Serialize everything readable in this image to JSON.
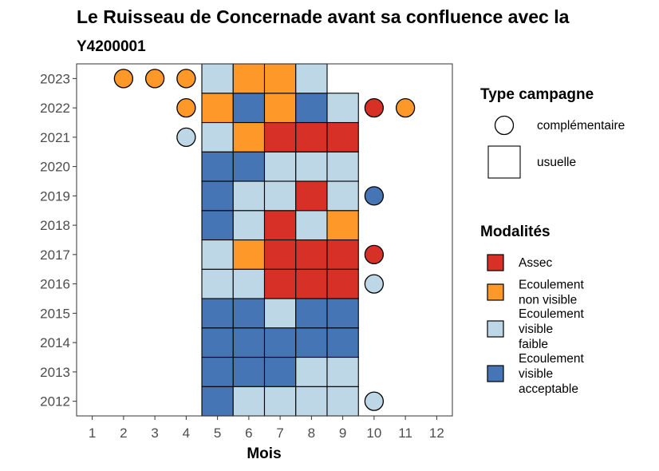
{
  "chart_data": {
    "type": "heatmap",
    "title": "Le Ruisseau de Concernade avant sa confluence avec la",
    "subtitle": "Y4200001",
    "xlabel": "Mois",
    "ylabel": "",
    "x_ticks": [
      "1",
      "2",
      "3",
      "4",
      "5",
      "6",
      "7",
      "8",
      "9",
      "10",
      "11",
      "12"
    ],
    "y_ticks": [
      "2012",
      "2013",
      "2014",
      "2015",
      "2016",
      "2017",
      "2018",
      "2019",
      "2020",
      "2021",
      "2022",
      "2023"
    ],
    "xlim": [
      0.5,
      12.5
    ],
    "ylim": [
      2011.5,
      2023.5
    ],
    "grid": false,
    "legend_placement": "right",
    "legend_type": {
      "title": "Type campagne",
      "entries": [
        {
          "key": "complementaire",
          "label": "complémentaire",
          "shape": "circle"
        },
        {
          "key": "usuelle",
          "label": "usuelle",
          "shape": "square"
        }
      ]
    },
    "legend_modalites": {
      "title": "Modalités",
      "entries": [
        {
          "key": "assec",
          "lines": [
            "Assec"
          ],
          "color": "#d73027"
        },
        {
          "key": "ecoul_non_visible",
          "lines": [
            "Ecoulement",
            "non visible"
          ],
          "color": "#fe9929"
        },
        {
          "key": "ecoul_visible_faible",
          "lines": [
            "Ecoulement",
            "visible",
            "faible"
          ],
          "color": "#bdd7e7"
        },
        {
          "key": "ecoul_visible_acceptable",
          "lines": [
            "Ecoulement",
            "visible",
            "acceptable"
          ],
          "color": "#4575b4"
        }
      ]
    },
    "observations": [
      {
        "year": 2012,
        "month": 5,
        "type": "usuelle",
        "modalite": "ecoul_visible_acceptable"
      },
      {
        "year": 2012,
        "month": 6,
        "type": "usuelle",
        "modalite": "ecoul_visible_faible"
      },
      {
        "year": 2012,
        "month": 7,
        "type": "usuelle",
        "modalite": "ecoul_visible_faible"
      },
      {
        "year": 2012,
        "month": 8,
        "type": "usuelle",
        "modalite": "ecoul_visible_faible"
      },
      {
        "year": 2012,
        "month": 9,
        "type": "usuelle",
        "modalite": "ecoul_visible_faible"
      },
      {
        "year": 2012,
        "month": 10,
        "type": "complementaire",
        "modalite": "ecoul_visible_faible"
      },
      {
        "year": 2013,
        "month": 5,
        "type": "usuelle",
        "modalite": "ecoul_visible_acceptable"
      },
      {
        "year": 2013,
        "month": 6,
        "type": "usuelle",
        "modalite": "ecoul_visible_acceptable"
      },
      {
        "year": 2013,
        "month": 7,
        "type": "usuelle",
        "modalite": "ecoul_visible_acceptable"
      },
      {
        "year": 2013,
        "month": 8,
        "type": "usuelle",
        "modalite": "ecoul_visible_faible"
      },
      {
        "year": 2013,
        "month": 9,
        "type": "usuelle",
        "modalite": "ecoul_visible_faible"
      },
      {
        "year": 2014,
        "month": 5,
        "type": "usuelle",
        "modalite": "ecoul_visible_acceptable"
      },
      {
        "year": 2014,
        "month": 6,
        "type": "usuelle",
        "modalite": "ecoul_visible_acceptable"
      },
      {
        "year": 2014,
        "month": 7,
        "type": "usuelle",
        "modalite": "ecoul_visible_acceptable"
      },
      {
        "year": 2014,
        "month": 8,
        "type": "usuelle",
        "modalite": "ecoul_visible_acceptable"
      },
      {
        "year": 2014,
        "month": 9,
        "type": "usuelle",
        "modalite": "ecoul_visible_acceptable"
      },
      {
        "year": 2015,
        "month": 5,
        "type": "usuelle",
        "modalite": "ecoul_visible_acceptable"
      },
      {
        "year": 2015,
        "month": 6,
        "type": "usuelle",
        "modalite": "ecoul_visible_acceptable"
      },
      {
        "year": 2015,
        "month": 7,
        "type": "usuelle",
        "modalite": "ecoul_visible_faible"
      },
      {
        "year": 2015,
        "month": 8,
        "type": "usuelle",
        "modalite": "ecoul_visible_acceptable"
      },
      {
        "year": 2015,
        "month": 9,
        "type": "usuelle",
        "modalite": "ecoul_visible_acceptable"
      },
      {
        "year": 2016,
        "month": 5,
        "type": "usuelle",
        "modalite": "ecoul_visible_faible"
      },
      {
        "year": 2016,
        "month": 6,
        "type": "usuelle",
        "modalite": "ecoul_visible_faible"
      },
      {
        "year": 2016,
        "month": 7,
        "type": "usuelle",
        "modalite": "assec"
      },
      {
        "year": 2016,
        "month": 8,
        "type": "usuelle",
        "modalite": "assec"
      },
      {
        "year": 2016,
        "month": 9,
        "type": "usuelle",
        "modalite": "assec"
      },
      {
        "year": 2016,
        "month": 10,
        "type": "complementaire",
        "modalite": "ecoul_visible_faible"
      },
      {
        "year": 2017,
        "month": 5,
        "type": "usuelle",
        "modalite": "ecoul_visible_faible"
      },
      {
        "year": 2017,
        "month": 6,
        "type": "usuelle",
        "modalite": "ecoul_non_visible"
      },
      {
        "year": 2017,
        "month": 7,
        "type": "usuelle",
        "modalite": "assec"
      },
      {
        "year": 2017,
        "month": 8,
        "type": "usuelle",
        "modalite": "assec"
      },
      {
        "year": 2017,
        "month": 9,
        "type": "usuelle",
        "modalite": "assec"
      },
      {
        "year": 2017,
        "month": 10,
        "type": "complementaire",
        "modalite": "assec"
      },
      {
        "year": 2018,
        "month": 5,
        "type": "usuelle",
        "modalite": "ecoul_visible_acceptable"
      },
      {
        "year": 2018,
        "month": 6,
        "type": "usuelle",
        "modalite": "ecoul_visible_faible"
      },
      {
        "year": 2018,
        "month": 7,
        "type": "usuelle",
        "modalite": "assec"
      },
      {
        "year": 2018,
        "month": 8,
        "type": "usuelle",
        "modalite": "ecoul_visible_faible"
      },
      {
        "year": 2018,
        "month": 9,
        "type": "usuelle",
        "modalite": "ecoul_non_visible"
      },
      {
        "year": 2019,
        "month": 5,
        "type": "usuelle",
        "modalite": "ecoul_visible_acceptable"
      },
      {
        "year": 2019,
        "month": 6,
        "type": "usuelle",
        "modalite": "ecoul_visible_faible"
      },
      {
        "year": 2019,
        "month": 7,
        "type": "usuelle",
        "modalite": "ecoul_visible_faible"
      },
      {
        "year": 2019,
        "month": 8,
        "type": "usuelle",
        "modalite": "assec"
      },
      {
        "year": 2019,
        "month": 9,
        "type": "usuelle",
        "modalite": "ecoul_visible_faible"
      },
      {
        "year": 2019,
        "month": 10,
        "type": "complementaire",
        "modalite": "ecoul_visible_acceptable"
      },
      {
        "year": 2020,
        "month": 5,
        "type": "usuelle",
        "modalite": "ecoul_visible_acceptable"
      },
      {
        "year": 2020,
        "month": 6,
        "type": "usuelle",
        "modalite": "ecoul_visible_acceptable"
      },
      {
        "year": 2020,
        "month": 7,
        "type": "usuelle",
        "modalite": "ecoul_visible_faible"
      },
      {
        "year": 2020,
        "month": 8,
        "type": "usuelle",
        "modalite": "ecoul_visible_faible"
      },
      {
        "year": 2020,
        "month": 9,
        "type": "usuelle",
        "modalite": "ecoul_visible_faible"
      },
      {
        "year": 2021,
        "month": 4,
        "type": "complementaire",
        "modalite": "ecoul_visible_faible"
      },
      {
        "year": 2021,
        "month": 5,
        "type": "usuelle",
        "modalite": "ecoul_visible_faible"
      },
      {
        "year": 2021,
        "month": 6,
        "type": "usuelle",
        "modalite": "ecoul_non_visible"
      },
      {
        "year": 2021,
        "month": 7,
        "type": "usuelle",
        "modalite": "assec"
      },
      {
        "year": 2021,
        "month": 8,
        "type": "usuelle",
        "modalite": "assec"
      },
      {
        "year": 2021,
        "month": 9,
        "type": "usuelle",
        "modalite": "assec"
      },
      {
        "year": 2022,
        "month": 4,
        "type": "complementaire",
        "modalite": "ecoul_non_visible"
      },
      {
        "year": 2022,
        "month": 5,
        "type": "usuelle",
        "modalite": "ecoul_non_visible"
      },
      {
        "year": 2022,
        "month": 6,
        "type": "usuelle",
        "modalite": "ecoul_visible_acceptable"
      },
      {
        "year": 2022,
        "month": 7,
        "type": "usuelle",
        "modalite": "ecoul_non_visible"
      },
      {
        "year": 2022,
        "month": 8,
        "type": "usuelle",
        "modalite": "ecoul_visible_acceptable"
      },
      {
        "year": 2022,
        "month": 9,
        "type": "usuelle",
        "modalite": "ecoul_visible_faible"
      },
      {
        "year": 2022,
        "month": 10,
        "type": "complementaire",
        "modalite": "assec"
      },
      {
        "year": 2022,
        "month": 11,
        "type": "complementaire",
        "modalite": "ecoul_non_visible"
      },
      {
        "year": 2023,
        "month": 2,
        "type": "complementaire",
        "modalite": "ecoul_non_visible"
      },
      {
        "year": 2023,
        "month": 3,
        "type": "complementaire",
        "modalite": "ecoul_non_visible"
      },
      {
        "year": 2023,
        "month": 4,
        "type": "complementaire",
        "modalite": "ecoul_non_visible"
      },
      {
        "year": 2023,
        "month": 5,
        "type": "usuelle",
        "modalite": "ecoul_visible_faible"
      },
      {
        "year": 2023,
        "month": 6,
        "type": "usuelle",
        "modalite": "ecoul_non_visible"
      },
      {
        "year": 2023,
        "month": 7,
        "type": "usuelle",
        "modalite": "ecoul_non_visible"
      },
      {
        "year": 2023,
        "month": 8,
        "type": "usuelle",
        "modalite": "ecoul_visible_faible"
      }
    ]
  }
}
